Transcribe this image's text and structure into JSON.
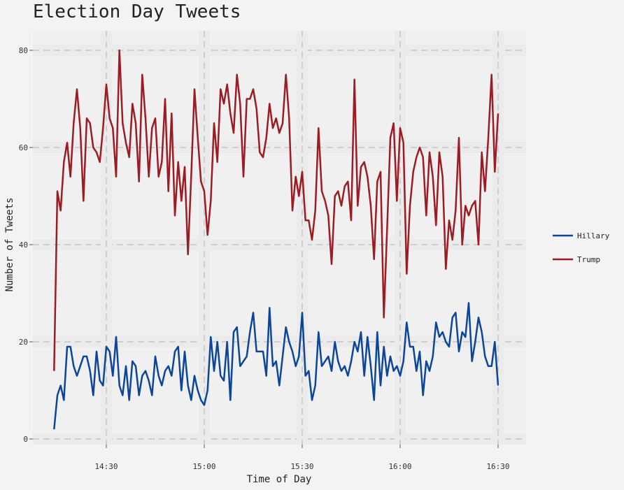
{
  "chart_data": {
    "type": "line",
    "title": "Election Day Tweets",
    "xlabel": "Time of Day",
    "ylabel": "Number of Tweets",
    "ylim": [
      0,
      80
    ],
    "yticks": [
      0,
      20,
      40,
      60,
      80
    ],
    "xlim": [
      "14:14",
      "16:31"
    ],
    "xticks": [
      "14:30",
      "15:00",
      "15:30",
      "16:00",
      "16:30"
    ],
    "x_start": "14:14",
    "x_step_minutes": 1,
    "grid": true,
    "legend": "right",
    "series": [
      {
        "name": "Hillary",
        "color": "#0c4599",
        "values": [
          2,
          9,
          11,
          8,
          19,
          19,
          15,
          13,
          15,
          17,
          17,
          14,
          9,
          18,
          12,
          11,
          19,
          18,
          13,
          21,
          11,
          9,
          15,
          8,
          16,
          15,
          9,
          13,
          14,
          12,
          9,
          17,
          13,
          11,
          14,
          15,
          13,
          18,
          19,
          10,
          18,
          11,
          8,
          13,
          10,
          8,
          7,
          10,
          21,
          14,
          20,
          13,
          12,
          20,
          8,
          22,
          23,
          15,
          16,
          17,
          22,
          26,
          18,
          18,
          18,
          13,
          27,
          15,
          16,
          11,
          17,
          23,
          20,
          18,
          15,
          17,
          26,
          13,
          14,
          8,
          11,
          22,
          15,
          16,
          17,
          14,
          20,
          16,
          14,
          15,
          13,
          16,
          20,
          18,
          22,
          13,
          21,
          15,
          8,
          22,
          11,
          19,
          13,
          17,
          14,
          15,
          13,
          16,
          24,
          19,
          19,
          14,
          18,
          9,
          16,
          14,
          17,
          24,
          21,
          22,
          20,
          19,
          25,
          26,
          18,
          22,
          21,
          28,
          16,
          20,
          25,
          22,
          17,
          15,
          15,
          20,
          11
        ]
      },
      {
        "name": "Trump",
        "color": "#9c1c24",
        "values": [
          14,
          51,
          47,
          57,
          61,
          54,
          65,
          72,
          64,
          49,
          66,
          65,
          60,
          59,
          57,
          64,
          73,
          66,
          64,
          54,
          80,
          65,
          61,
          58,
          69,
          65,
          53,
          75,
          66,
          54,
          64,
          66,
          54,
          57,
          70,
          51,
          67,
          46,
          57,
          49,
          56,
          38,
          54,
          72,
          62,
          53,
          51,
          42,
          49,
          65,
          57,
          72,
          69,
          73,
          67,
          63,
          75,
          69,
          54,
          70,
          70,
          72,
          68,
          59,
          58,
          62,
          69,
          64,
          66,
          63,
          65,
          75,
          66,
          47,
          54,
          50,
          55,
          45,
          45,
          41,
          47,
          64,
          51,
          49,
          46,
          36,
          50,
          51,
          48,
          52,
          53,
          45,
          74,
          48,
          56,
          57,
          54,
          48,
          37,
          53,
          55,
          25,
          43,
          62,
          65,
          49,
          64,
          61,
          34,
          48,
          55,
          58,
          60,
          58,
          46,
          59,
          54,
          44,
          59,
          54,
          35,
          45,
          41,
          47,
          62,
          40,
          48,
          46,
          48,
          49,
          40,
          59,
          51,
          62,
          75,
          55,
          67
        ]
      }
    ]
  }
}
